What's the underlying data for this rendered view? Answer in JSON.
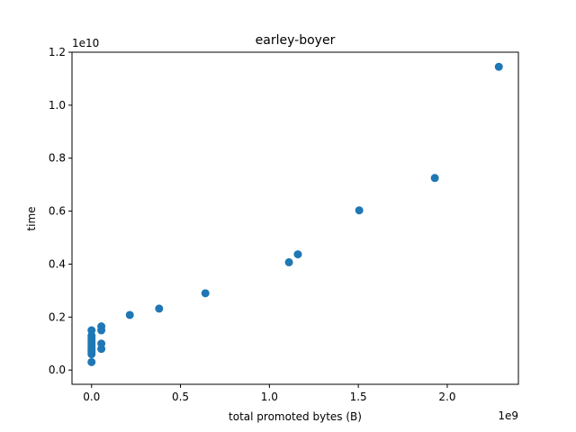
{
  "chart_data": {
    "type": "scatter",
    "title": "earley-boyer",
    "xlabel": "total promoted bytes (B)",
    "ylabel": "time",
    "x_offset_text": "1e9",
    "y_offset_text": "1e10",
    "xlim": [
      -0.11,
      2.4
    ],
    "ylim": [
      -0.0537,
      1.2
    ],
    "x_ticks": [
      0.0,
      0.5,
      1.0,
      1.5,
      2.0
    ],
    "x_tick_labels": [
      "0.0",
      "0.5",
      "1.0",
      "1.5",
      "2.0"
    ],
    "y_ticks": [
      0.0,
      0.2,
      0.4,
      0.6,
      0.8,
      1.0,
      1.2
    ],
    "y_tick_labels": [
      "0.0",
      "0.2",
      "0.4",
      "0.6",
      "0.8",
      "1.0",
      "1.2"
    ],
    "marker_color": "#1f77b4",
    "grid": false,
    "points": [
      {
        "x": 0.0,
        "y": 0.03
      },
      {
        "x": 0.0,
        "y": 0.06
      },
      {
        "x": 0.0,
        "y": 0.07
      },
      {
        "x": 0.0,
        "y": 0.08
      },
      {
        "x": 0.0,
        "y": 0.09
      },
      {
        "x": 0.0,
        "y": 0.1
      },
      {
        "x": 0.0,
        "y": 0.11
      },
      {
        "x": 0.0,
        "y": 0.12
      },
      {
        "x": 0.0,
        "y": 0.13
      },
      {
        "x": 0.0,
        "y": 0.15
      },
      {
        "x": 0.055,
        "y": 0.08
      },
      {
        "x": 0.055,
        "y": 0.1
      },
      {
        "x": 0.055,
        "y": 0.15
      },
      {
        "x": 0.055,
        "y": 0.165
      },
      {
        "x": 0.215,
        "y": 0.208
      },
      {
        "x": 0.38,
        "y": 0.232
      },
      {
        "x": 0.64,
        "y": 0.29
      },
      {
        "x": 1.11,
        "y": 0.407
      },
      {
        "x": 1.16,
        "y": 0.437
      },
      {
        "x": 1.505,
        "y": 0.603
      },
      {
        "x": 1.93,
        "y": 0.725
      },
      {
        "x": 2.29,
        "y": 1.145
      }
    ]
  }
}
